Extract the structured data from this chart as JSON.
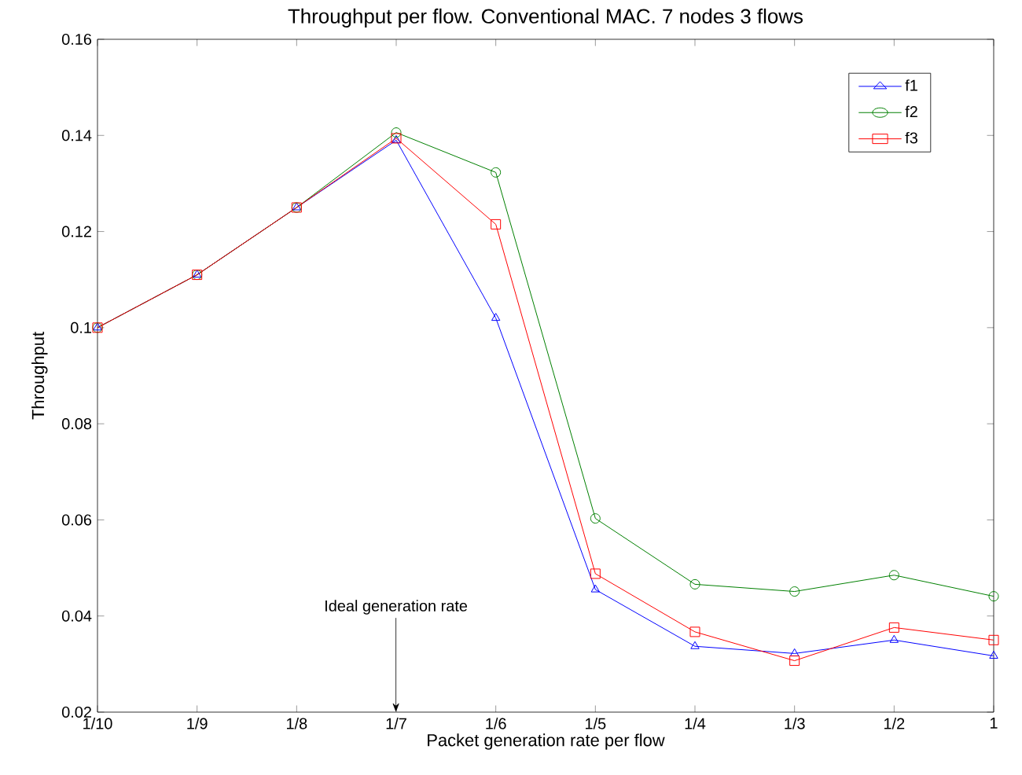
{
  "chart_data": {
    "type": "line",
    "title": "Throughput per flow. Conventional MAC. 7 nodes 3 flows",
    "xlabel": "Packet generation rate per flow",
    "ylabel": "Throughput",
    "categories": [
      "1/10",
      "1/9",
      "1/8",
      "1/7",
      "1/6",
      "1/5",
      "1/4",
      "1/3",
      "1/2",
      "1"
    ],
    "series": [
      {
        "name": "f1",
        "color": "#0000ff",
        "marker": "triangle",
        "values": [
          0.1,
          0.111,
          0.125,
          0.139,
          0.102,
          0.0455,
          0.0337,
          0.0322,
          0.035,
          0.0317
        ]
      },
      {
        "name": "f2",
        "color": "#008000",
        "marker": "circle",
        "values": [
          0.1,
          0.111,
          0.125,
          0.1406,
          0.1323,
          0.0603,
          0.0466,
          0.0451,
          0.0485,
          0.0441
        ]
      },
      {
        "name": "f3",
        "color": "#ff0000",
        "marker": "square",
        "values": [
          0.1,
          0.111,
          0.125,
          0.1394,
          0.1215,
          0.0488,
          0.0367,
          0.0307,
          0.0376,
          0.035
        ]
      }
    ],
    "ylim": [
      0.02,
      0.16
    ],
    "yticks": [
      0.02,
      0.04,
      0.06,
      0.08,
      0.1,
      0.12,
      0.14,
      0.16
    ],
    "annotations": [
      "Ideal generation rate"
    ],
    "legend": "top right",
    "grid": false,
    "line_style": "solid"
  }
}
